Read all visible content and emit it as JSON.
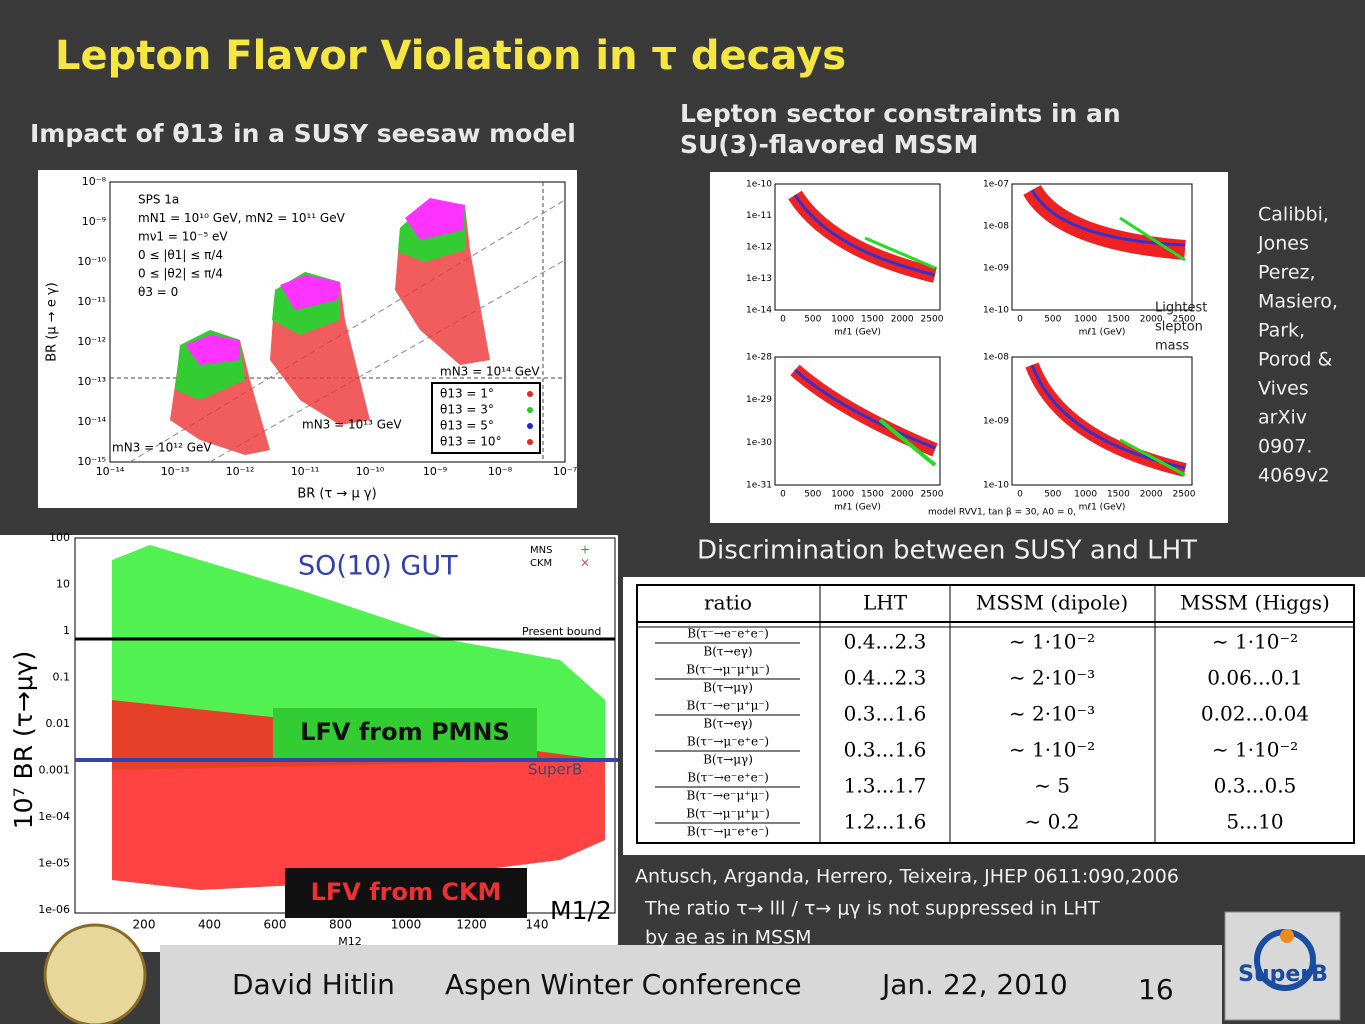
{
  "title": "Lepton Flavor Violation in τ decays",
  "left_heading": "Impact of θ13 in a SUSY seesaw model",
  "right_heading": [
    "Lepton sector constraints in an",
    "SU(3)-flavored MSSM"
  ],
  "citation": [
    "Calibbi,",
    "Jones",
    "Perez,",
    "Masiero,",
    "Park,",
    "Porod &",
    "Vives",
    "arXiv",
    "0907.",
    "4069v2"
  ],
  "plot_seesaw": {
    "info": [
      "SPS 1a",
      "mN1 = 10¹⁰ GeV, mN2 = 10¹¹ GeV",
      "mν1 = 10⁻⁵ eV",
      "0 ≤ |θ1| ≤ π/4",
      "0 ≤ |θ2| ≤ π/4",
      "θ3 = 0"
    ],
    "y_label": "BR (μ → e γ)",
    "x_label": "BR (τ → μ γ)",
    "yticks": [
      "10⁻⁸",
      "10⁻⁹",
      "10⁻¹⁰",
      "10⁻¹¹",
      "10⁻¹²",
      "10⁻¹³",
      "10⁻¹⁴",
      "10⁻¹⁵"
    ],
    "xticks": [
      "10⁻¹⁴",
      "10⁻¹³",
      "10⁻¹²",
      "10⁻¹¹",
      "10⁻¹⁰",
      "10⁻⁹",
      "10⁻⁸",
      "10⁻⁷"
    ],
    "annotations": [
      "mN3 = 10¹⁴ GeV",
      "mN3 = 10¹³ GeV",
      "mN3 = 10¹² GeV"
    ],
    "legend": [
      "θ13 = 1°",
      "θ13 = 3°",
      "θ13 = 5°",
      "θ13 = 10°"
    ]
  },
  "plot_mssm": {
    "annotation": [
      "Lightest",
      "slepton",
      "mass"
    ],
    "xticks": [
      "0",
      "500",
      "1000",
      "1500",
      "2000",
      "2500"
    ],
    "x_label": "mℓ1 (GeV)",
    "footnote": "model RVV1, tan β = 30, A0 = 0,",
    "panel_yticks": [
      [
        "1e-10",
        "1e-11",
        "1e-12",
        "1e-13",
        "1e-14"
      ],
      [
        "1e-07",
        "1e-08",
        "1e-09",
        "1e-10"
      ],
      [
        "1e-28",
        "1e-29",
        "1e-30",
        "1e-31"
      ],
      [
        "1e-08",
        "1e-09",
        "1e-10"
      ]
    ]
  },
  "plot_gut": {
    "title": "SO(10) GUT",
    "y_label": "10⁷ BR (τ→μγ)",
    "x_label": "M1/2",
    "axis_label": "M12",
    "legend": [
      "MNS",
      "CKM"
    ],
    "bound_label": "Present bound",
    "superb_label": "SuperB",
    "boxes": [
      "LFV from PMNS",
      "LFV from CKM"
    ],
    "yticks": [
      "100",
      "10",
      "1",
      "0.1",
      "0.01",
      "0.001",
      "1e-04",
      "1e-05",
      "1e-06"
    ],
    "xticks": [
      "200",
      "400",
      "600",
      "800",
      "1000",
      "1200",
      "140"
    ]
  },
  "discrimination": {
    "heading": "Discrimination between SUSY and LHT",
    "header": [
      "ratio",
      "LHT",
      "MSSM (dipole)",
      "MSSM (Higgs)"
    ],
    "rows": [
      [
        "B(τ⁻→e⁻e⁺e⁻)",
        "B(τ→eγ)",
        "0.4...2.3",
        "∼ 1·10⁻²",
        "∼ 1·10⁻²"
      ],
      [
        "B(τ⁻→μ⁻μ⁺μ⁻)",
        "B(τ→μγ)",
        "0.4...2.3",
        "∼ 2·10⁻³",
        "0.06...0.1"
      ],
      [
        "B(τ⁻→e⁻μ⁺μ⁻)",
        "B(τ→eγ)",
        "0.3...1.6",
        "∼ 2·10⁻³",
        "0.02...0.04"
      ],
      [
        "B(τ⁻→μ⁻e⁺e⁻)",
        "B(τ→μγ)",
        "0.3...1.6",
        "∼ 1·10⁻²",
        "∼ 1·10⁻²"
      ],
      [
        "B(τ⁻→e⁻e⁺e⁻)",
        "B(τ⁻→e⁻μ⁺μ⁻)",
        "1.3...1.7",
        "∼ 5",
        "0.3...0.5"
      ],
      [
        "B(τ⁻→μ⁻μ⁺μ⁻)",
        "B(τ⁻→μ⁻e⁺e⁻)",
        "1.2...1.6",
        "∼ 0.2",
        "5...10"
      ]
    ]
  },
  "reference": "Antusch, Arganda, Herrero, Teixeira,  JHEP 0611:090,2006",
  "note": [
    "The ratio τ→ lll / τ→ μγ is not suppressed in LHT",
    "by ae as in MSSM"
  ],
  "footer": {
    "author": "David Hitlin",
    "conference": "Aspen Winter Conference",
    "date": "Jan. 22, 2010",
    "page": "16",
    "logo": "SuperB"
  }
}
